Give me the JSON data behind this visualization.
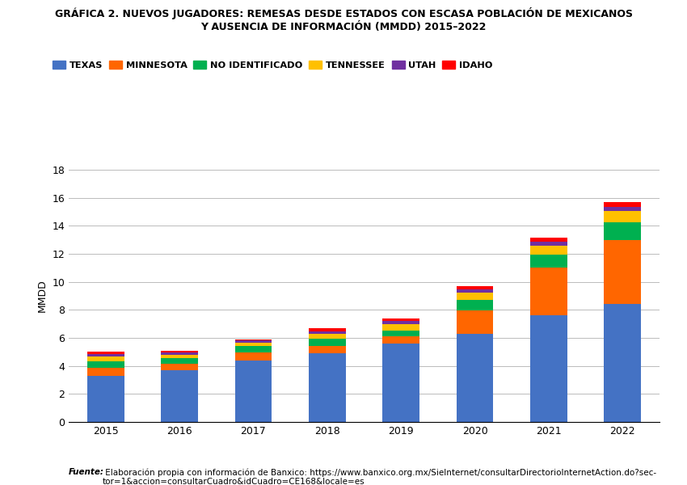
{
  "title_line1": "GRÁFICA 2. NUEVOS JUGADORES: REMESAS DESDE ESTADOS CON ESCASA POBLACIÓN DE MEXICANOS",
  "title_line2": "Y AUSENCIA DE INFORMACIÓN (MMDD) 2015–2022",
  "ylabel": "MMDD",
  "years": [
    2015,
    2016,
    2017,
    2018,
    2019,
    2020,
    2021,
    2022
  ],
  "series": {
    "TEXAS": [
      3.3,
      3.7,
      4.4,
      4.9,
      5.6,
      6.3,
      7.6,
      8.4
    ],
    "MINNESOTA": [
      0.55,
      0.45,
      0.55,
      0.55,
      0.5,
      1.65,
      3.4,
      4.6
    ],
    "NO IDENTIFICADO": [
      0.45,
      0.38,
      0.45,
      0.48,
      0.42,
      0.75,
      0.95,
      1.25
    ],
    "TENNESSEE": [
      0.38,
      0.28,
      0.28,
      0.38,
      0.48,
      0.55,
      0.65,
      0.8
    ],
    "UTAH": [
      0.18,
      0.18,
      0.14,
      0.18,
      0.22,
      0.22,
      0.28,
      0.32
    ],
    "IDAHO": [
      0.14,
      0.11,
      0.09,
      0.18,
      0.18,
      0.22,
      0.27,
      0.32
    ]
  },
  "colors": {
    "TEXAS": "#4472C4",
    "MINNESOTA": "#FF6600",
    "NO IDENTIFICADO": "#00B050",
    "TENNESSEE": "#FFC000",
    "UTAH": "#7030A0",
    "IDAHO": "#FF0000"
  },
  "ylim": [
    0,
    18
  ],
  "yticks": [
    0,
    2,
    4,
    6,
    8,
    10,
    12,
    14,
    16,
    18
  ],
  "background_color": "#FFFFFF",
  "grid_color": "#BBBBBB",
  "footnote_bold_italic": "Fuente:",
  "footnote_normal": " Elaboración propia con información de Banxico: https://www.banxico.org.mx/SieInternet/consultarDirectorioInternetAction.do?sec-\ntor=1&accion=consultarCuadro&idCuadro=CE168&locale=es"
}
